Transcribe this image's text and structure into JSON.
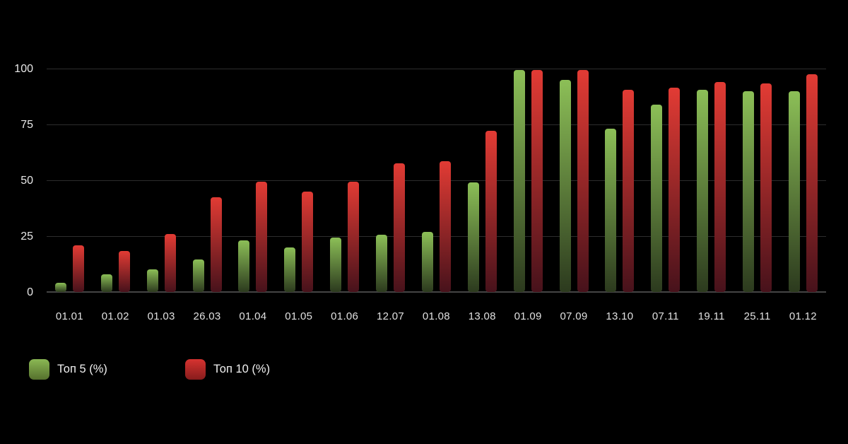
{
  "chart_data": {
    "type": "bar",
    "title": "",
    "xlabel": "",
    "ylabel": "",
    "categories": [
      "01.01",
      "01.02",
      "01.03",
      "26.03",
      "01.04",
      "01.05",
      "01.06",
      "12.07",
      "01.08",
      "13.08",
      "01.09",
      "07.09",
      "13.10",
      "07.11",
      "19.11",
      "25.11",
      "01.12"
    ],
    "series": [
      {
        "name": "Топ 5 (%)",
        "color_top": "#8cbf57",
        "color_bottom": "#2c3a1e",
        "values": [
          4,
          8,
          10,
          14.5,
          23,
          20,
          24.5,
          25.5,
          27,
          49,
          99.5,
          95,
          73,
          84,
          90.5,
          90,
          90
        ]
      },
      {
        "name": "Топ 10 (%)",
        "color_top": "#e23b34",
        "color_bottom": "#47121b",
        "values": [
          21,
          18.5,
          26,
          42.5,
          49.5,
          45,
          49.5,
          57.5,
          58.5,
          72,
          99.5,
          99.5,
          90.5,
          91.5,
          94,
          93.5,
          97.5
        ]
      }
    ],
    "ylim": [
      0,
      100
    ],
    "yticks": [
      0,
      25,
      50,
      75,
      100
    ],
    "grid": true,
    "legend_position": "bottom-left",
    "background": "#000000"
  },
  "legend": {
    "items": [
      {
        "label": "Топ 5 (%)",
        "swatch_top": "#8bb854",
        "swatch_bottom": "#55702d"
      },
      {
        "label": "Топ 10 (%)",
        "swatch_top": "#d63330",
        "swatch_bottom": "#871c1c"
      }
    ]
  },
  "axis": {
    "label_color": "#e8e8e8",
    "gridline_color": "#2d2d2d",
    "baseline_color": "#454545"
  }
}
